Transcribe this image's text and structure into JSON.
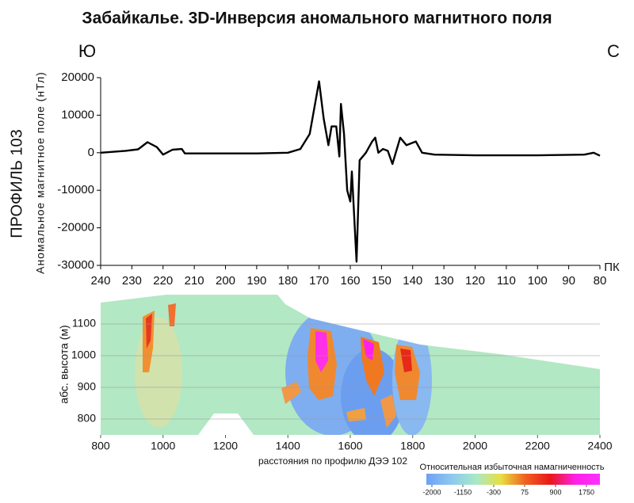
{
  "chart_data": [
    {
      "type": "line",
      "title": "Забайкалье. 3D-Инверсия аномального магнитного поля",
      "south_label": "Ю",
      "north_label": "С",
      "profile_label": "ПРОФИЛЬ 103",
      "y_label": "Аномальное магнитное поле (нТл)",
      "x_label": "ПК",
      "color": "#000000",
      "x": [
        240,
        232,
        228,
        225,
        222,
        220,
        217,
        214,
        213,
        200,
        190,
        180,
        176,
        173,
        170,
        168.5,
        167,
        166,
        164.5,
        163.5,
        163,
        162,
        161,
        160,
        159.5,
        158,
        157,
        155,
        153,
        152,
        151,
        149.5,
        148,
        146.5,
        144,
        142,
        139,
        137,
        133,
        120,
        100,
        85,
        82,
        80
      ],
      "values": [
        0,
        500,
        900,
        2800,
        1500,
        -500,
        800,
        1000,
        -200,
        -200,
        -200,
        0,
        1000,
        5000,
        19000,
        9000,
        2000,
        7000,
        7000,
        -1000,
        13000,
        5000,
        -10000,
        -13000,
        -5000,
        -29000,
        -2000,
        0,
        3000,
        4000,
        0,
        1000,
        500,
        -3000,
        4000,
        2000,
        3000,
        0,
        -500,
        -700,
        -700,
        -500,
        0,
        -800
      ],
      "xlim": [
        240,
        80
      ],
      "xticks": [
        240,
        230,
        220,
        210,
        200,
        190,
        180,
        170,
        160,
        150,
        140,
        130,
        120,
        110,
        100,
        90,
        80
      ],
      "ylim": [
        -30000,
        20000
      ],
      "yticks": [
        -30000,
        -20000,
        -10000,
        0,
        10000,
        20000
      ]
    },
    {
      "type": "section",
      "y_label": "абс. высота (м)",
      "x_label": "расстояния по профилю ДЭЭ 102",
      "xlim": [
        800,
        2400
      ],
      "xticks": [
        800,
        1000,
        1200,
        1400,
        1600,
        1800,
        2000,
        2200,
        2400
      ],
      "ylim": [
        750,
        1200
      ],
      "yticks": [
        800,
        900,
        1000,
        1100
      ],
      "grid": true,
      "colorbar": {
        "title": "Относительная избыточная намагниченность",
        "ticks": [
          -2000,
          -1150,
          -300,
          75,
          900,
          1750
        ],
        "colors": [
          "#6fa0f5",
          "#8ec8f0",
          "#a8e8c8",
          "#e8e040",
          "#f06020",
          "#e81818",
          "#ff20e8",
          "#ff30ff"
        ]
      }
    }
  ]
}
